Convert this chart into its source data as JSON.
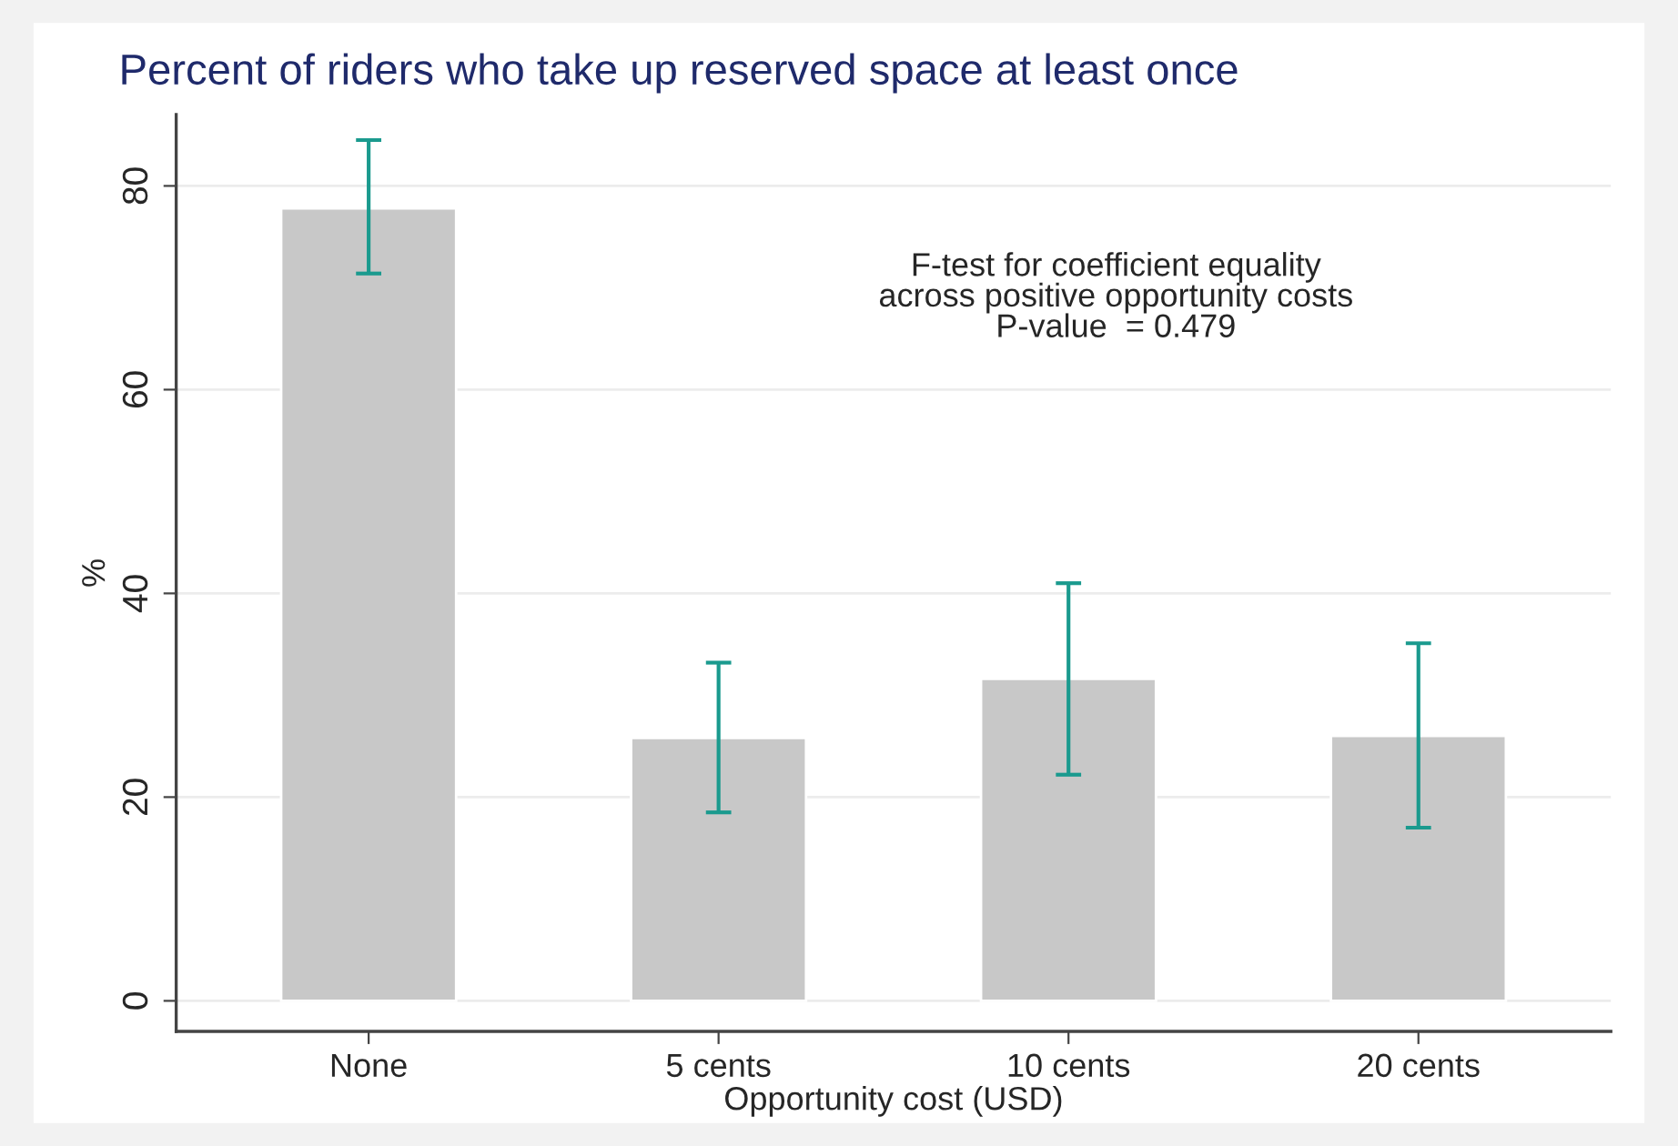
{
  "chart_data": {
    "type": "bar",
    "title": "Percent of riders who take up reserved space at least once",
    "xlabel": "Opportunity cost (USD)",
    "ylabel": "%",
    "categories": [
      "None",
      "5 cents",
      "10 cents",
      "20 cents"
    ],
    "values": [
      77.8,
      25.8,
      31.6,
      26.0
    ],
    "errors": [
      [
        71.4,
        84.5
      ],
      [
        18.5,
        33.2
      ],
      [
        22.2,
        41.0
      ],
      [
        17.0,
        35.1
      ]
    ],
    "color": "#c8c8c8",
    "ylim": [
      -3,
      87
    ],
    "yticks": [
      0,
      20,
      40,
      60,
      80
    ],
    "grid": "y",
    "annotations": [
      "F-test for coefficient equality\nacross positive opportunity costs\nP-value  = 0.479"
    ]
  }
}
